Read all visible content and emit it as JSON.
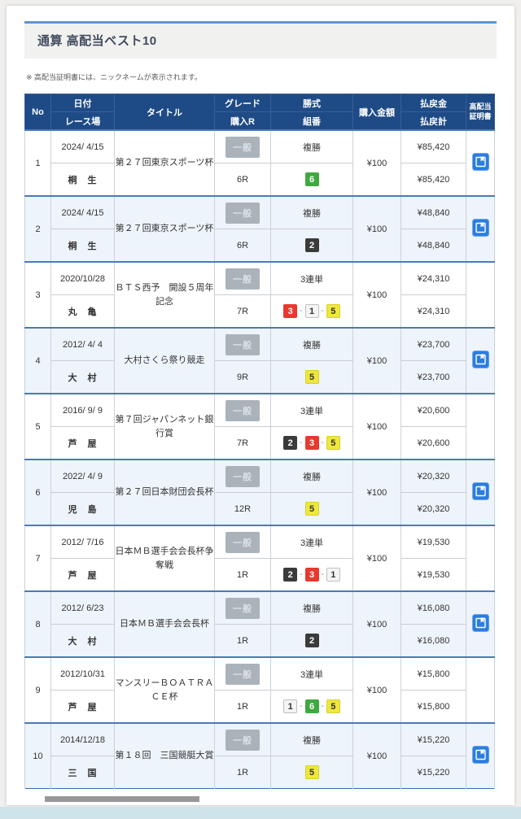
{
  "page": {
    "title": "通算 高配当ベスト10",
    "note": "※ 高配当証明書には、ニックネームが表示されます。"
  },
  "table": {
    "headers": {
      "no": "No",
      "date": "日付",
      "venue": "レース場",
      "title": "タイトル",
      "grade": "グレード",
      "purchase_r": "購入R",
      "bet_type": "勝式",
      "combination": "組番",
      "purchase_amount": "購入金額",
      "payout": "払戻金",
      "payout_total": "払戻計",
      "cert_line1": "高配当",
      "cert_line2": "証明書"
    },
    "combo_separator": "-",
    "rows": [
      {
        "no": "1",
        "date": "2024/ 4/15",
        "venue": "桐　生",
        "title": "第２７回東京スポーツ杯",
        "grade": "一般",
        "round": "6R",
        "bet_type": "複勝",
        "combo": [
          6
        ],
        "amount": "¥100",
        "payout": "¥85,420",
        "payout_total": "¥85,420",
        "certificate": true
      },
      {
        "no": "2",
        "date": "2024/ 4/15",
        "venue": "桐　生",
        "title": "第２７回東京スポーツ杯",
        "grade": "一般",
        "round": "6R",
        "bet_type": "複勝",
        "combo": [
          2
        ],
        "amount": "¥100",
        "payout": "¥48,840",
        "payout_total": "¥48,840",
        "certificate": true
      },
      {
        "no": "3",
        "date": "2020/10/28",
        "venue": "丸　亀",
        "title": "ＢＴＳ西予　開設５周年記念",
        "grade": "一般",
        "round": "7R",
        "bet_type": "3連単",
        "combo": [
          3,
          1,
          5
        ],
        "amount": "¥100",
        "payout": "¥24,310",
        "payout_total": "¥24,310",
        "certificate": false
      },
      {
        "no": "4",
        "date": "2012/ 4/ 4",
        "venue": "大　村",
        "title": "大村さくら祭り競走",
        "grade": "一般",
        "round": "9R",
        "bet_type": "複勝",
        "combo": [
          5
        ],
        "amount": "¥100",
        "payout": "¥23,700",
        "payout_total": "¥23,700",
        "certificate": true
      },
      {
        "no": "5",
        "date": "2016/ 9/ 9",
        "venue": "芦　屋",
        "title": "第７回ジャパンネット銀行賞",
        "grade": "一般",
        "round": "7R",
        "bet_type": "3連単",
        "combo": [
          2,
          3,
          5
        ],
        "amount": "¥100",
        "payout": "¥20,600",
        "payout_total": "¥20,600",
        "certificate": false
      },
      {
        "no": "6",
        "date": "2022/ 4/ 9",
        "venue": "児　島",
        "title": "第２７回日本財団会長杯",
        "grade": "一般",
        "round": "12R",
        "bet_type": "複勝",
        "combo": [
          5
        ],
        "amount": "¥100",
        "payout": "¥20,320",
        "payout_total": "¥20,320",
        "certificate": true
      },
      {
        "no": "7",
        "date": "2012/ 7/16",
        "venue": "芦　屋",
        "title": "日本ＭＢ選手会会長杯争奪戦",
        "grade": "一般",
        "round": "1R",
        "bet_type": "3連単",
        "combo": [
          2,
          3,
          1
        ],
        "amount": "¥100",
        "payout": "¥19,530",
        "payout_total": "¥19,530",
        "certificate": false
      },
      {
        "no": "8",
        "date": "2012/ 6/23",
        "venue": "大　村",
        "title": "日本ＭＢ選手会会長杯",
        "grade": "一般",
        "round": "1R",
        "bet_type": "複勝",
        "combo": [
          2
        ],
        "amount": "¥100",
        "payout": "¥16,080",
        "payout_total": "¥16,080",
        "certificate": true
      },
      {
        "no": "9",
        "date": "2012/10/31",
        "venue": "芦　屋",
        "title": "マンスリーＢＯＡＴＲＡＣＥ杯",
        "grade": "一般",
        "round": "1R",
        "bet_type": "3連単",
        "combo": [
          1,
          6,
          5
        ],
        "amount": "¥100",
        "payout": "¥15,800",
        "payout_total": "¥15,800",
        "certificate": false
      },
      {
        "no": "10",
        "date": "2014/12/18",
        "venue": "三　国",
        "title": "第１８回　三国競艇大賞",
        "grade": "一般",
        "round": "1R",
        "bet_type": "複勝",
        "combo": [
          5
        ],
        "amount": "¥100",
        "payout": "¥15,220",
        "payout_total": "¥15,220",
        "certificate": true
      }
    ]
  },
  "colors": {
    "header_bg": "#1e4b86",
    "row_alt_bg": "#eef4fb",
    "row_separator": "#4a7ab8",
    "title_accent": "#5e96d2",
    "grade_badge_bg": "#aab3ba",
    "certificate_icon_bg": "#2a7de1",
    "bottom_band": "#cfe3eb",
    "badge_colors": {
      "1": {
        "bg": "#f4f4f4",
        "fg": "#333333",
        "border": "#c0c0c0"
      },
      "2": {
        "bg": "#3b3b3b",
        "fg": "#ffffff",
        "border": "#3b3b3b"
      },
      "3": {
        "bg": "#e8392f",
        "fg": "#ffffff",
        "border": "#e8392f"
      },
      "4": {
        "bg": "#2763c4",
        "fg": "#ffffff",
        "border": "#2763c4"
      },
      "5": {
        "bg": "#eee73c",
        "fg": "#333333",
        "border": "#d8d02e"
      },
      "6": {
        "bg": "#3fa93f",
        "fg": "#ffffff",
        "border": "#3fa93f"
      }
    }
  }
}
